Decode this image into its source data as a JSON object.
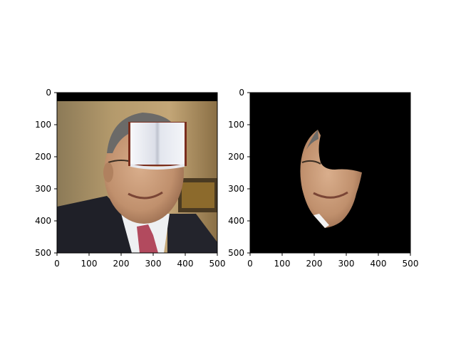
{
  "panels": [
    {
      "name": "left-image-panel",
      "content": "occluded-face-image",
      "x_ticks": [
        "0",
        "100",
        "200",
        "300",
        "400",
        "500"
      ],
      "y_ticks": [
        "0",
        "100",
        "200",
        "300",
        "400",
        "500"
      ],
      "xlim": [
        0,
        500
      ],
      "ylim": [
        500,
        0
      ]
    },
    {
      "name": "right-image-panel",
      "content": "segmented-face-mask-image",
      "x_ticks": [
        "0",
        "100",
        "200",
        "300",
        "400",
        "500"
      ],
      "y_ticks": [
        "0",
        "100",
        "200",
        "300",
        "400",
        "500"
      ],
      "xlim": [
        0,
        500
      ],
      "ylim": [
        500,
        0
      ]
    }
  ],
  "colors": {
    "mask_background": "#000000",
    "skin": "#c69a79",
    "suit": "#1f2028",
    "tie": "#b24a5e",
    "book_page": "#eef0f6",
    "book_cover": "#7a2e1e"
  }
}
